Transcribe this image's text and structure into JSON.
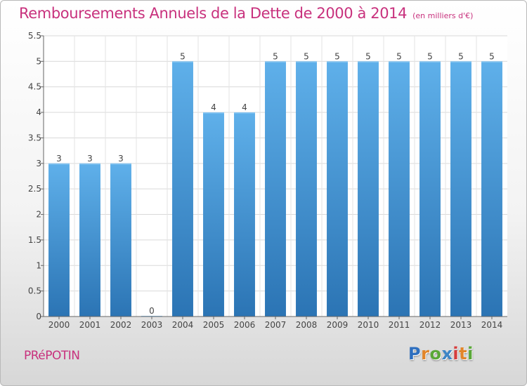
{
  "header": {
    "title": "Remboursements Annuels de la Dette de 2000 à 2014",
    "subtitle": "(en milliers d'€)"
  },
  "footer": {
    "place_name": "PRéPOTIN",
    "brand": {
      "letters": [
        "P",
        "r",
        "o",
        "x",
        "i",
        "t",
        "i"
      ],
      "colors": [
        "#2e6fbf",
        "#e2852a",
        "#5aa838",
        "#3d86c6",
        "#d63d3d",
        "#e2852a",
        "#5aa838"
      ]
    }
  },
  "colors": {
    "accent": "#c8317d",
    "bar_light": "#5fb0ea",
    "bar_dark": "#2b74b4"
  },
  "chart_data": {
    "type": "bar",
    "categories": [
      "2000",
      "2001",
      "2002",
      "2003",
      "2004",
      "2005",
      "2006",
      "2007",
      "2008",
      "2009",
      "2010",
      "2011",
      "2012",
      "2013",
      "2014"
    ],
    "values": [
      3,
      3,
      3,
      0,
      5,
      4,
      4,
      5,
      5,
      5,
      5,
      5,
      5,
      5,
      5
    ],
    "data_labels": [
      "3",
      "3",
      "3",
      "0",
      "5",
      "4",
      "4",
      "5",
      "5",
      "5",
      "5",
      "5",
      "5",
      "5",
      "5"
    ],
    "ylim": [
      0,
      5.5
    ],
    "yticks": [
      0,
      0.5,
      1,
      1.5,
      2,
      2.5,
      3,
      3.5,
      4,
      4.5,
      5,
      5.5
    ],
    "ytick_labels": [
      "0",
      "0.5",
      "1",
      "1.5",
      "2",
      "2.5",
      "3",
      "3.5",
      "4",
      "4.5",
      "5",
      "5.5"
    ],
    "xlabel": "",
    "ylabel": "",
    "grid": true,
    "legend": "none"
  }
}
